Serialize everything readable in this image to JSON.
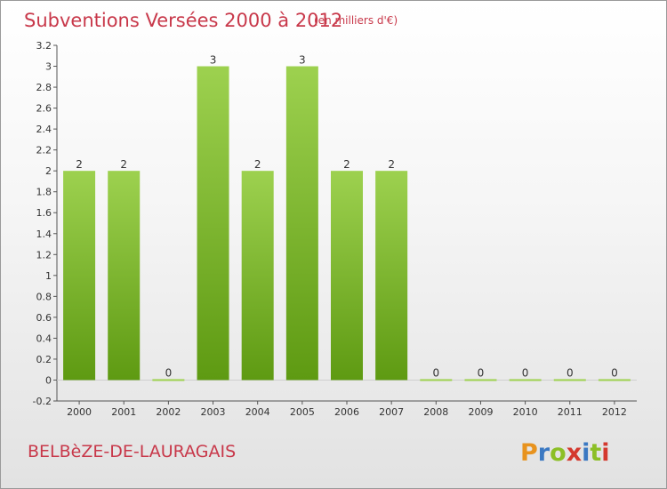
{
  "header": {
    "title": "Subventions Versées 2000 à 2012",
    "unit_note": "(en milliers d'€)"
  },
  "footer": {
    "commune": "BELBèZE-DE-LAURAGAIS",
    "brand": {
      "letters": [
        "P",
        "r",
        "o",
        "x",
        "i",
        "t",
        "i"
      ],
      "colors": [
        "#e8931e",
        "#3a78c2",
        "#8cbf26",
        "#d4392e",
        "#3a78c2",
        "#8cbf26",
        "#d4392e"
      ]
    }
  },
  "colors": {
    "bar_top": "#9dd14f",
    "bar_bottom": "#5e9a12",
    "accent": "#c8384a",
    "axis": "#555555"
  },
  "chart_data": {
    "type": "bar",
    "title": "Subventions Versées 2000 à 2012",
    "subtitle": "(en milliers d'€)",
    "categories": [
      "2000",
      "2001",
      "2002",
      "2003",
      "2004",
      "2005",
      "2006",
      "2007",
      "2008",
      "2009",
      "2010",
      "2011",
      "2012"
    ],
    "values": [
      2,
      2,
      0,
      3,
      2,
      3,
      2,
      2,
      0,
      0,
      0,
      0,
      0
    ],
    "data_labels": [
      "2",
      "2",
      "0",
      "3",
      "2",
      "3",
      "2",
      "2",
      "0",
      "0",
      "0",
      "0",
      "0"
    ],
    "ylim": [
      -0.2,
      3.2
    ],
    "yticks": [
      -0.2,
      0,
      0.2,
      0.4,
      0.6,
      0.8,
      1,
      1.2,
      1.4,
      1.6,
      1.8,
      2,
      2.2,
      2.4,
      2.6,
      2.8,
      3,
      3.2
    ],
    "ytick_labels": [
      "-0.2",
      "0",
      "0.2",
      "0.4",
      "0.6",
      "0.8",
      "1",
      "1.2",
      "1.4",
      "1.6",
      "1.8",
      "2",
      "2.2",
      "2.4",
      "2.6",
      "2.8",
      "3",
      "3.2"
    ],
    "grid": false,
    "legend": "none",
    "xlabel": "",
    "ylabel": ""
  }
}
